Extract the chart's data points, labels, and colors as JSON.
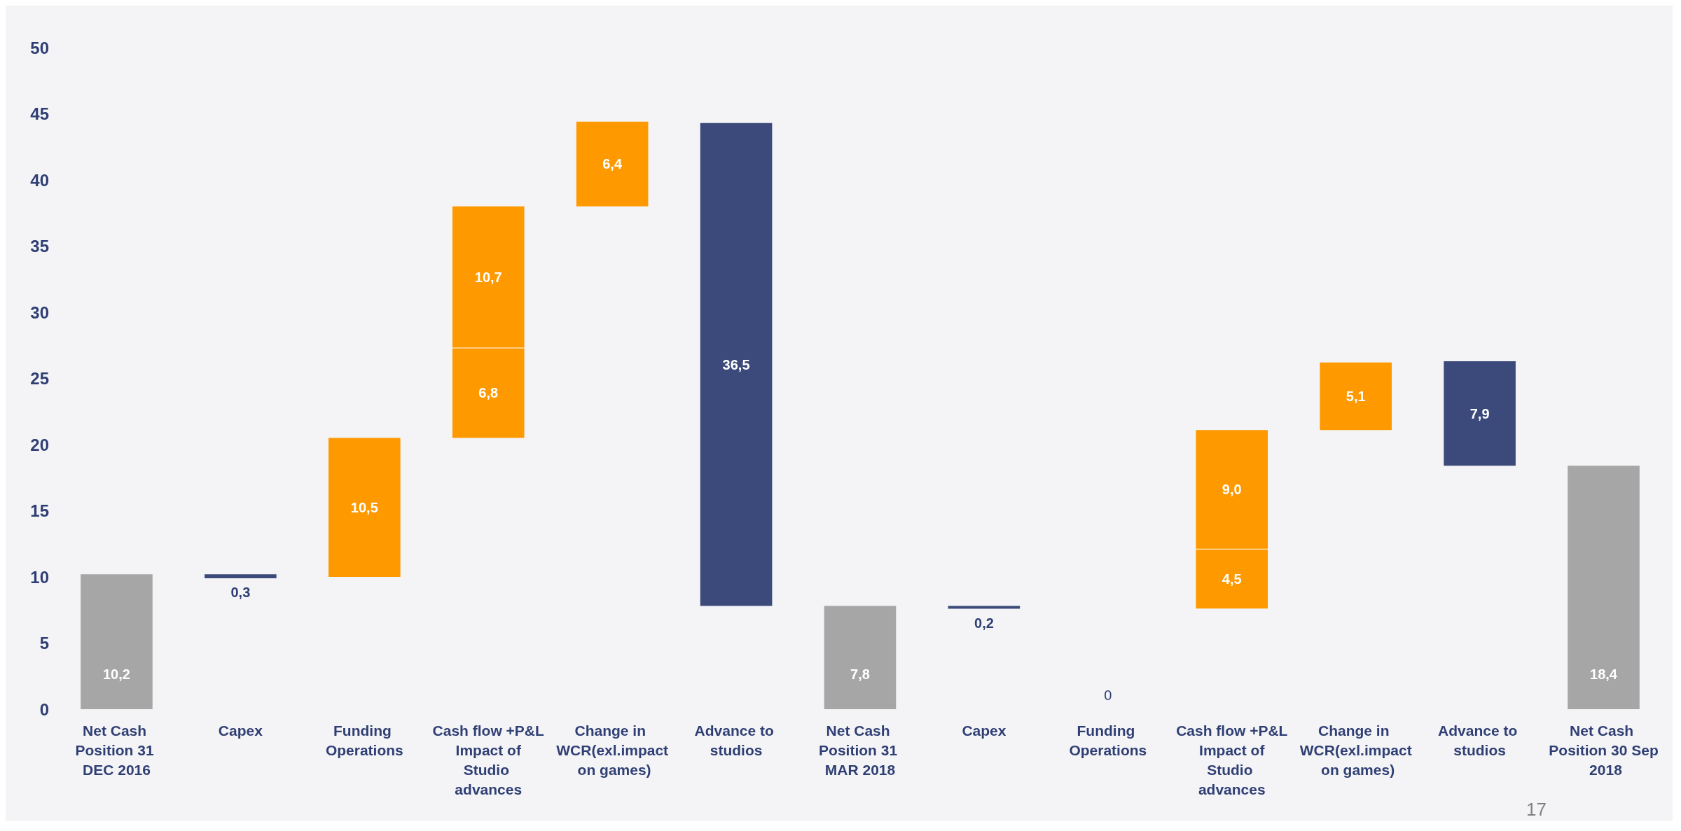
{
  "chart_data": {
    "type": "bar",
    "categories": [
      "Net Cash Position 31 DEC 2016",
      "Capex",
      "Funding Operations",
      "Cash flow +P&L Impact of Studio advances",
      "Change in WCR(exl.impact on games)",
      "Advance to studios",
      "Net Cash Position 31 MAR 2018",
      "Capex",
      "Funding Operations",
      "Cash flow +P&L Impact of Studio advances",
      "Change in WCR(exl.impact on games)",
      "Advance to studios",
      "Net Cash Position 30 Sep 2018"
    ],
    "series": [
      {
        "color": "#a6a6a6",
        "values": [
          10.2,
          null,
          null,
          null,
          null,
          null,
          7.8,
          null,
          null,
          null,
          null,
          null,
          18.4
        ],
        "base": [
          0,
          null,
          null,
          null,
          null,
          null,
          0,
          null,
          null,
          null,
          null,
          null,
          0
        ],
        "value_labels": [
          "10,2",
          null,
          null,
          null,
          null,
          null,
          "7,8",
          null,
          null,
          null,
          null,
          null,
          "18,4"
        ]
      },
      {
        "color": "#3b4a7a",
        "values": [
          null,
          0.3,
          null,
          null,
          null,
          36.5,
          null,
          0.2,
          null,
          null,
          null,
          7.9,
          null
        ],
        "base": [
          null,
          9.9,
          null,
          null,
          null,
          7.8,
          null,
          7.6,
          null,
          null,
          null,
          18.4,
          null
        ],
        "value_labels": [
          null,
          "0,3",
          null,
          null,
          null,
          "36,5",
          null,
          "0,2",
          null,
          null,
          null,
          "7,9",
          null
        ]
      },
      {
        "color": "#ff9900",
        "values": [
          null,
          null,
          10.5,
          6.8,
          6.4,
          null,
          null,
          null,
          0,
          4.5,
          5.1,
          null,
          null
        ],
        "base": [
          null,
          null,
          10.0,
          20.5,
          38.0,
          null,
          null,
          null,
          null,
          7.6,
          21.1,
          null,
          null
        ],
        "value_labels": [
          null,
          null,
          "10,5",
          "6,8",
          "6,4",
          null,
          null,
          null,
          "0",
          "4,5",
          "5,1",
          null,
          null
        ]
      },
      {
        "color": "#ff9900",
        "values": [
          null,
          null,
          null,
          10.7,
          null,
          null,
          null,
          null,
          null,
          9.0,
          null,
          null,
          null
        ],
        "base": [
          null,
          null,
          null,
          27.3,
          null,
          null,
          null,
          null,
          null,
          12.1,
          null,
          null,
          null
        ],
        "value_labels": [
          null,
          null,
          null,
          "10,7",
          null,
          null,
          null,
          null,
          null,
          "9,0",
          null,
          null,
          null
        ]
      }
    ],
    "ylim": [
      0,
      50
    ],
    "yticks": [
      0,
      5,
      10,
      15,
      20,
      25,
      30,
      35,
      40,
      45,
      50
    ],
    "grid": false,
    "annotations": [
      "17"
    ]
  }
}
